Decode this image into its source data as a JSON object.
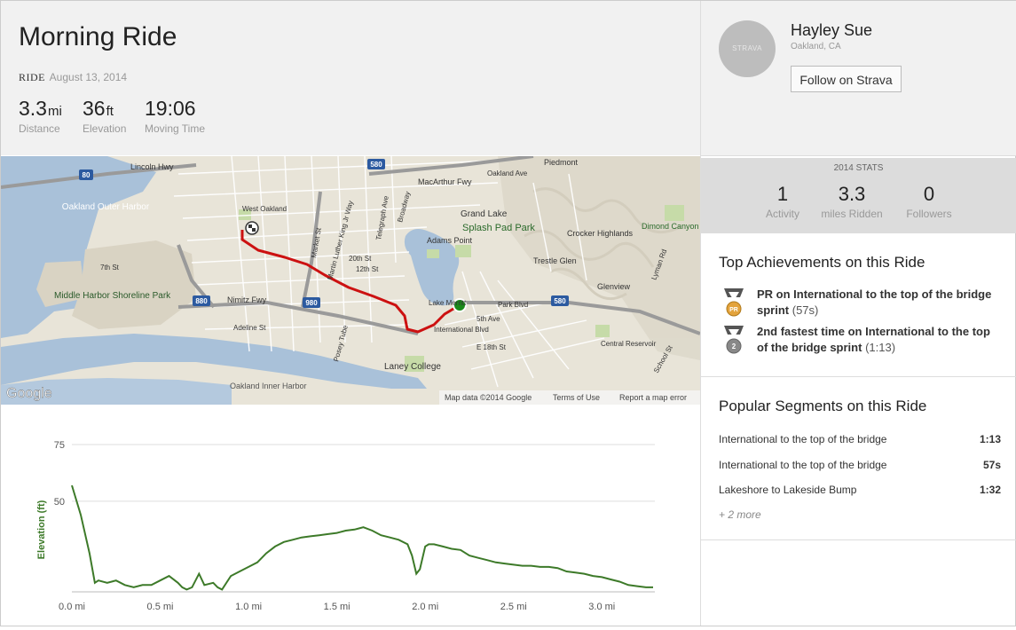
{
  "activity": {
    "title": "Morning Ride",
    "type": "RIDE",
    "date": "August 13, 2014",
    "stats": [
      {
        "value": "3.3",
        "unit": "mi",
        "label": "Distance"
      },
      {
        "value": "36",
        "unit": "ft",
        "label": "Elevation"
      },
      {
        "value": "19:06",
        "unit": "",
        "label": "Moving Time"
      }
    ]
  },
  "map": {
    "attribution_logo": "Google",
    "footer": [
      "Map data ©2014 Google",
      "Terms of Use",
      "Report a map error"
    ],
    "labels": {
      "lincoln_hwy": "Lincoln Hwy",
      "oakland_outer_harbor": "Oakland Outer Harbor",
      "middle_harbor": "Middle Harbor Shoreline Park",
      "grand_lake": "Grand Lake",
      "splash_pad_park": "Splash Pad Park",
      "adams_point": "Adams Point",
      "piedmont": "Piedmont",
      "crocker_highlands": "Crocker Highlands",
      "trestle_glen": "Trestle Glen",
      "glenview": "Glenview",
      "dimond_canyon_park": "Dimond Canyon Park",
      "laney_college": "Laney College",
      "oakland_inner_harbor": "Oakland Inner Harbor",
      "west_oakland": "West Oakland",
      "macarthur_fwy": "MacArthur Fwy",
      "nimitz_fwy": "Nimitz Fwy",
      "international_blvd": "International Blvd",
      "park_blvd": "Park Blvd",
      "lake_merritt": "Lake Merritt",
      "e18th_st": "E 18th St",
      "fifth_ave": "5th Ave",
      "oakland_ave": "Oakland Ave",
      "telegraph_ave": "Telegraph Ave",
      "broadway": "Broadway",
      "market_st": "Market St",
      "mlk_way": "Martin Luther King Jr Way",
      "twelfth_st": "12th St",
      "twentieth_st": "20th St",
      "seventh_st": "7th St",
      "adeline_st": "Adeline St",
      "posey_tube": "Posey Tube",
      "central_reservoir": "Central Reservoir",
      "school_st": "School St",
      "lyman_rd": "Lyman Rd",
      "shields": [
        "80",
        "580",
        "880",
        "980",
        "580"
      ]
    }
  },
  "chart_data": {
    "type": "line",
    "title": "",
    "xlabel": "",
    "ylabel": "Elevation (ft)",
    "xlim": [
      0,
      3.3
    ],
    "ylim": [
      10,
      75
    ],
    "y_ticks": [
      75,
      50
    ],
    "x_ticks": [
      "0.0 mi",
      "0.5 mi",
      "1.0 mi",
      "1.5 mi",
      "2.0 mi",
      "2.5 mi",
      "3.0 mi"
    ],
    "x_tick_values": [
      0,
      0.5,
      1.0,
      1.5,
      2.0,
      2.5,
      3.0
    ],
    "color": "#3d7a29",
    "series": [
      {
        "x": [
          0,
          0.05,
          0.1,
          0.13,
          0.15,
          0.2,
          0.25,
          0.3,
          0.35,
          0.4,
          0.45,
          0.5,
          0.55,
          0.6,
          0.625,
          0.65,
          0.68,
          0.72,
          0.75,
          0.8,
          0.825,
          0.85,
          0.9,
          0.95,
          1.0,
          1.05,
          1.1,
          1.15,
          1.2,
          1.25,
          1.3,
          1.35,
          1.4,
          1.45,
          1.5,
          1.55,
          1.6,
          1.625,
          1.65,
          1.7,
          1.75,
          1.8,
          1.85,
          1.9,
          1.925,
          1.95,
          1.97,
          2.0,
          2.02,
          2.05,
          2.1,
          2.15,
          2.2,
          2.25,
          2.3,
          2.35,
          2.4,
          2.45,
          2.5,
          2.55,
          2.6,
          2.65,
          2.7,
          2.75,
          2.8,
          2.85,
          2.9,
          2.95,
          3.0,
          3.05,
          3.1,
          3.15,
          3.2,
          3.25,
          3.29
        ],
        "y": [
          57,
          44,
          27,
          14,
          15,
          14,
          15,
          13,
          12,
          13,
          13,
          15,
          17,
          14,
          12,
          11,
          12,
          18,
          13,
          14,
          12,
          11,
          17,
          19,
          21,
          23,
          27,
          30,
          32,
          33,
          34,
          34.5,
          35,
          35.5,
          36,
          37,
          37.5,
          38,
          38.5,
          37,
          35,
          34,
          33,
          31,
          26,
          18,
          20,
          30,
          31,
          31,
          30,
          29,
          28.5,
          26,
          25,
          24,
          23,
          22.5,
          22,
          21.5,
          21.5,
          21,
          21,
          20.5,
          19,
          18.5,
          18,
          17,
          16.5,
          15.5,
          14.5,
          13,
          12.5,
          12,
          12
        ]
      }
    ]
  },
  "profile": {
    "avatar_text": "STRAVA",
    "name": "Hayley Sue",
    "location": "Oakland, CA",
    "follow_label": "Follow on Strava"
  },
  "year_stats": {
    "title": "2014 STATS",
    "items": [
      {
        "value": "1",
        "label": "Activity"
      },
      {
        "value": "3.3",
        "label": "miles Ridden"
      },
      {
        "value": "0",
        "label": "Followers"
      }
    ]
  },
  "achievements": {
    "title": "Top Achievements on this Ride",
    "items": [
      {
        "badge": "PR",
        "text": "PR on International to the top of the bridge sprint",
        "time": "(57s)",
        "badge_color": "#e3a33c"
      },
      {
        "badge": "2",
        "text": "2nd fastest time on International to the top of the bridge sprint",
        "time": "(1:13)",
        "badge_color": "#888888"
      }
    ]
  },
  "segments": {
    "title": "Popular Segments on this Ride",
    "items": [
      {
        "name": "International to the top of the bridge",
        "time": "1:13"
      },
      {
        "name": "International to the top of the bridge",
        "time": "57s"
      },
      {
        "name": "Lakeshore to Lakeside Bump",
        "time": "1:32"
      }
    ],
    "more": "+ 2 more"
  }
}
